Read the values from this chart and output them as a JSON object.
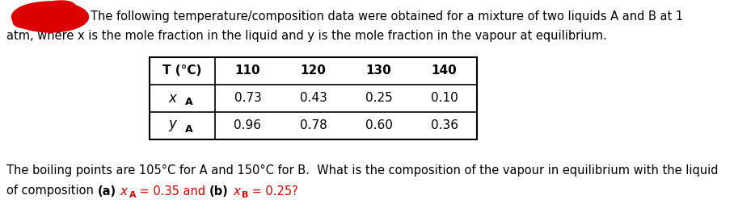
{
  "bg_color": "#ffffff",
  "red_blob_color": "#dd0000",
  "intro_text_line1": "The following temperature/composition data were obtained for a mixture of two liquids A and B at 1",
  "intro_text_line2": "atm, where x is the mole fraction in the liquid and y is the mole fraction in the vapour at equilibrium.",
  "table_headers": [
    "T (°C)",
    "110",
    "120",
    "130",
    "140"
  ],
  "table_row1_values": [
    "0.73",
    "0.43",
    "0.25",
    "0.10"
  ],
  "table_row2_values": [
    "0.96",
    "0.78",
    "0.60",
    "0.36"
  ],
  "bottom_text_line1": "The boiling points are 105°C for A and 150°C for B.  What is the composition of the vapour in equilibrium with the liquid",
  "font_size_main": 10.5,
  "font_size_table": 11.0,
  "red_color": "#cc0000",
  "black_color": "#000000"
}
